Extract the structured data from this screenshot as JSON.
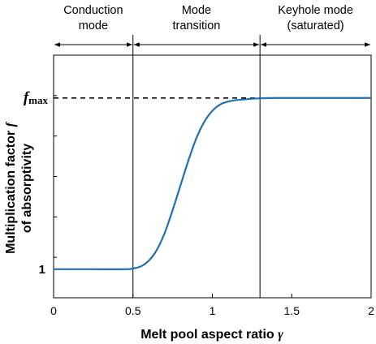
{
  "chart_data": {
    "type": "line",
    "xlabel": "Melt pool aspect ratio",
    "xlabel_symbol": "γ",
    "ylabel_line1": "Multiplication factor",
    "ylabel_symbol": "f",
    "ylabel_line2": "of absorptivity",
    "xlim": [
      0,
      2
    ],
    "x_ticks": [
      "0",
      "0.5",
      "1",
      "1.5",
      "2"
    ],
    "y_ticks": {
      "one": "1",
      "fmax_symbol": "f",
      "fmax_subscript": "max"
    },
    "ylim": [
      0.96,
      1.3
    ],
    "fmax_value": 1.24,
    "regions": [
      {
        "lines": [
          "Conduction",
          "mode"
        ],
        "x_start": 0,
        "x_end": 0.5
      },
      {
        "lines": [
          "Mode",
          "transition"
        ],
        "x_start": 0.5,
        "x_end": 1.3
      },
      {
        "lines": [
          "Keyhole mode",
          "(saturated)"
        ],
        "x_start": 1.3,
        "x_end": 2.0
      }
    ],
    "boundaries": [
      0.5,
      1.3
    ],
    "series": [
      {
        "color": "#1f6fb4",
        "x": [
          0,
          0.25,
          0.45,
          0.5,
          0.55,
          0.6,
          0.65,
          0.7,
          0.75,
          0.8,
          0.85,
          0.9,
          0.95,
          1.0,
          1.05,
          1.1,
          1.15,
          1.2,
          1.25,
          1.3,
          1.4,
          1.5,
          1.75,
          2.0
        ],
        "y": [
          1.0,
          1.0,
          1.0,
          1.001,
          1.004,
          1.012,
          1.027,
          1.051,
          1.083,
          1.118,
          1.153,
          1.184,
          1.207,
          1.222,
          1.231,
          1.235,
          1.237,
          1.238,
          1.239,
          1.2395,
          1.24,
          1.24,
          1.24,
          1.24
        ]
      }
    ],
    "dashed_line_color": "#000000"
  }
}
